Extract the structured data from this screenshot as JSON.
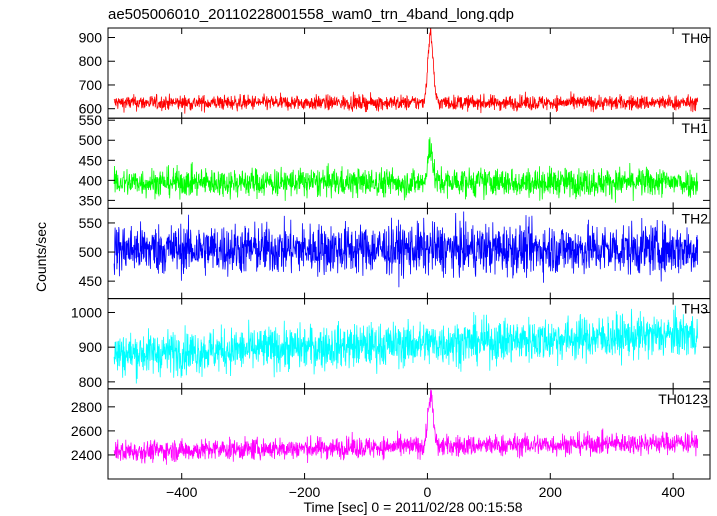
{
  "chart_data": {
    "type": "line",
    "title": "ae505006010_20110228001558_wam0_trn_4band_long.qdp",
    "xlabel": "Time [sec] 0 = 2011/02/28 00:15:58",
    "ylabel": "Counts/sec",
    "xlim": [
      -520,
      460
    ],
    "xticks": [
      -400,
      -200,
      0,
      200,
      400
    ],
    "panels": [
      {
        "label": "TH0",
        "color": "#ff0000",
        "ylim": [
          560,
          940
        ],
        "yticks": [
          600,
          700,
          800,
          900
        ],
        "baseline": 625,
        "noise": 16,
        "peak": {
          "x": 5,
          "y": 920,
          "width": 6
        },
        "x_range": [
          -510,
          440
        ]
      },
      {
        "label": "TH1",
        "color": "#00ff00",
        "ylim": [
          330,
          555
        ],
        "yticks": [
          350,
          400,
          450,
          500,
          550
        ],
        "baseline": 395,
        "noise": 18,
        "peak": {
          "x": 5,
          "y": 490,
          "width": 5
        },
        "x_range": [
          -510,
          440
        ]
      },
      {
        "label": "TH2",
        "color": "#0000ff",
        "ylim": [
          420,
          575
        ],
        "yticks": [
          450,
          500,
          550
        ],
        "baseline": 505,
        "noise": 22,
        "peak": null,
        "x_range": [
          -510,
          440
        ]
      },
      {
        "label": "TH3",
        "color": "#00ffff",
        "ylim": [
          780,
          1040
        ],
        "yticks": [
          800,
          900,
          1000
        ],
        "baseline": 880,
        "noise": 32,
        "trend": 0.06,
        "peak": null,
        "x_range": [
          -510,
          440
        ]
      },
      {
        "label": "TH0123",
        "color": "#ff00ff",
        "ylim": [
          2200,
          2950
        ],
        "yticks": [
          2400,
          2600,
          2800
        ],
        "baseline": 2430,
        "noise": 45,
        "trend": 0.08,
        "peak": {
          "x": 5,
          "y": 2850,
          "width": 6
        },
        "x_range": [
          -510,
          440
        ]
      }
    ]
  }
}
